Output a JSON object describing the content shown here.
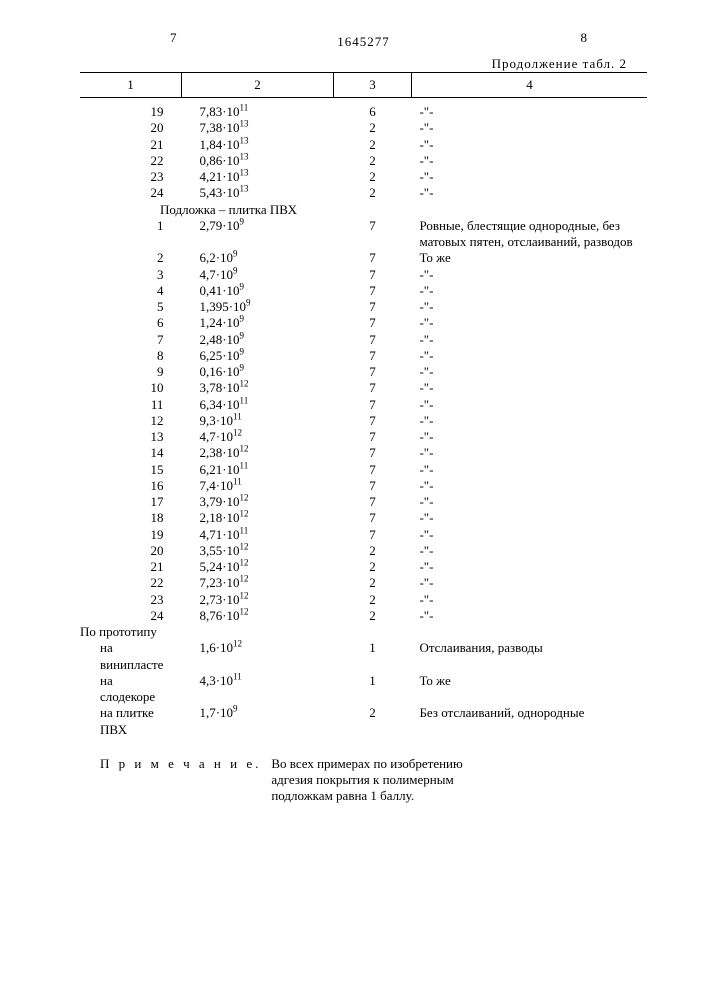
{
  "page_left": "7",
  "page_right": "8",
  "patent_number": "1645277",
  "continuation": "Продолжение табл. 2",
  "headers": [
    "1",
    "2",
    "3",
    "4"
  ],
  "ditto": "-\"-",
  "block1": [
    {
      "n": "19",
      "v": "7,83·10",
      "e": "11",
      "c3": "6",
      "c4": "-\"-"
    },
    {
      "n": "20",
      "v": "7,38·10",
      "e": "13",
      "c3": "2",
      "c4": "-\"-"
    },
    {
      "n": "21",
      "v": "1,84·10",
      "e": "13",
      "c3": "2",
      "c4": "-\"-"
    },
    {
      "n": "22",
      "v": "0,86·10",
      "e": "13",
      "c3": "2",
      "c4": "-\"-"
    },
    {
      "n": "23",
      "v": "4,21·10",
      "e": "13",
      "c3": "2",
      "c4": "-\"-"
    },
    {
      "n": "24",
      "v": "5,43·10",
      "e": "13",
      "c3": "2",
      "c4": "-\"-"
    }
  ],
  "substrate_label": "Подложка – плитка ПВХ",
  "row_pvc1": {
    "n": "1",
    "v": "2,79·10",
    "e": "9",
    "c3": "7",
    "c4": "Ровные, блестящие однородные, без матовых пятен, отслаиваний, разводов"
  },
  "block2": [
    {
      "n": "2",
      "v": "6,2·10",
      "e": "9",
      "c3": "7",
      "c4": "То же"
    },
    {
      "n": "3",
      "v": "4,7·10",
      "e": "9",
      "c3": "7",
      "c4": "-\"-"
    },
    {
      "n": "4",
      "v": "0,41·10",
      "e": "9",
      "c3": "7",
      "c4": "-\"-"
    },
    {
      "n": "5",
      "v": "1,395·10",
      "e": "9",
      "c3": "7",
      "c4": "-\"-"
    },
    {
      "n": "6",
      "v": "1,24·10",
      "e": "9",
      "c3": "7",
      "c4": "-\"-"
    },
    {
      "n": "7",
      "v": "2,48·10",
      "e": "9",
      "c3": "7",
      "c4": "-\"-"
    },
    {
      "n": "8",
      "v": "6,25·10",
      "e": "9",
      "c3": "7",
      "c4": "-\"-"
    },
    {
      "n": "9",
      "v": "0,16·10",
      "e": "9",
      "c3": "7",
      "c4": "-\"-"
    },
    {
      "n": "10",
      "v": "3,78·10",
      "e": "12",
      "c3": "7",
      "c4": "-\"-"
    },
    {
      "n": "11",
      "v": "6,34·10",
      "e": "11",
      "c3": "7",
      "c4": "-\"-"
    },
    {
      "n": "12",
      "v": "9,3·10",
      "e": "11",
      "c3": "7",
      "c4": "-\"-"
    },
    {
      "n": "13",
      "v": "4,7·10",
      "e": "12",
      "c3": "7",
      "c4": "-\"-"
    },
    {
      "n": "14",
      "v": "2,38·10",
      "e": "12",
      "c3": "7",
      "c4": "-\"-"
    },
    {
      "n": "15",
      "v": "6,21·10",
      "e": "11",
      "c3": "7",
      "c4": "-\"-"
    },
    {
      "n": "16",
      "v": "7,4·10",
      "e": "11",
      "c3": "7",
      "c4": "-\"-"
    },
    {
      "n": "17",
      "v": "3,79·10",
      "e": "12",
      "c3": "7",
      "c4": "-\"-"
    },
    {
      "n": "18",
      "v": "2,18·10",
      "e": "12",
      "c3": "7",
      "c4": "-\"-"
    },
    {
      "n": "19",
      "v": "4,71·10",
      "e": "11",
      "c3": "7",
      "c4": "-\"-"
    },
    {
      "n": "20",
      "v": "3,55·10",
      "e": "12",
      "c3": "2",
      "c4": "-\"-"
    },
    {
      "n": "21",
      "v": "5,24·10",
      "e": "12",
      "c3": "2",
      "c4": "-\"-"
    },
    {
      "n": "22",
      "v": "7,23·10",
      "e": "12",
      "c3": "2",
      "c4": "-\"-"
    },
    {
      "n": "23",
      "v": "2,73·10",
      "e": "12",
      "c3": "2",
      "c4": "-\"-"
    },
    {
      "n": "24",
      "v": "8,76·10",
      "e": "12",
      "c3": "2",
      "c4": "-\"-"
    }
  ],
  "proto_label": "По прототипу",
  "proto_rows": [
    {
      "lab": "на винипласте",
      "v": "1,6·10",
      "e": "12",
      "c3": "1",
      "c4": "Отслаивания, разводы"
    },
    {
      "lab": "на слодекоре",
      "v": "4,3·10",
      "e": "11",
      "c3": "1",
      "c4": "То же"
    },
    {
      "lab": "на плитке ПВХ",
      "v": "1,7·10",
      "e": "9",
      "c3": "2",
      "c4": "Без отслаиваний, однородные"
    }
  ],
  "note_label": "П р и м е ч а н и е.",
  "note_text": "Во всех примерах по изобретению адгезия покрытия к полимерным подложкам равна 1 баллу."
}
